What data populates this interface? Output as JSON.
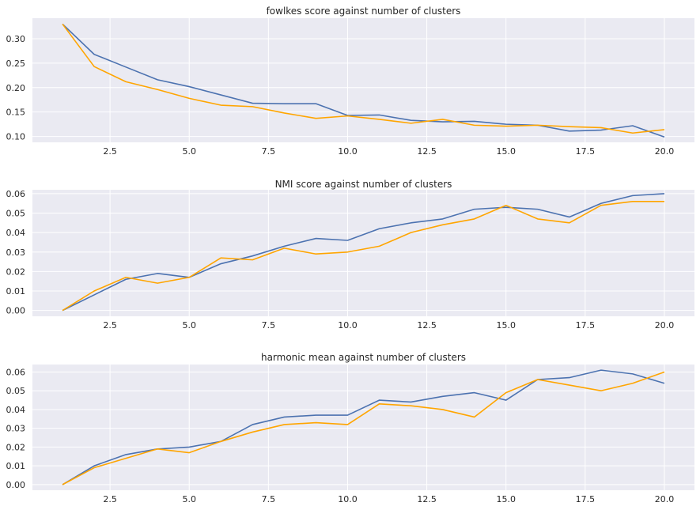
{
  "chart_data": [
    {
      "type": "line",
      "title": "fowlkes score against number of clusters",
      "xlabel": "",
      "ylabel": "",
      "xlim": [
        0.05,
        20.95
      ],
      "ylim": [
        0.088,
        0.342
      ],
      "grid": true,
      "x_ticks": [
        2.5,
        5.0,
        7.5,
        10.0,
        12.5,
        15.0,
        17.5,
        20.0
      ],
      "x_tick_labels": [
        "2.5",
        "5.0",
        "7.5",
        "10.0",
        "12.5",
        "15.0",
        "17.5",
        "20.0"
      ],
      "y_ticks": [
        0.1,
        0.15,
        0.2,
        0.25,
        0.3
      ],
      "y_tick_labels": [
        "0.10",
        "0.15",
        "0.20",
        "0.25",
        "0.30"
      ],
      "x": [
        1,
        2,
        3,
        4,
        5,
        6,
        7,
        8,
        9,
        10,
        11,
        12,
        13,
        14,
        15,
        16,
        17,
        18,
        19,
        20
      ],
      "series": [
        {
          "color": "#4c72b0",
          "values": [
            0.33,
            0.268,
            0.242,
            0.216,
            0.202,
            0.185,
            0.168,
            0.167,
            0.167,
            0.143,
            0.144,
            0.133,
            0.13,
            0.131,
            0.125,
            0.123,
            0.111,
            0.113,
            0.122,
            0.099
          ]
        },
        {
          "color": "#ffa500",
          "values": [
            0.33,
            0.243,
            0.212,
            0.196,
            0.178,
            0.164,
            0.161,
            0.148,
            0.137,
            0.142,
            0.135,
            0.127,
            0.135,
            0.123,
            0.121,
            0.123,
            0.12,
            0.118,
            0.107,
            0.114
          ]
        }
      ]
    },
    {
      "type": "line",
      "title": "NMI score against number of clusters",
      "xlabel": "",
      "ylabel": "",
      "xlim": [
        0.05,
        20.95
      ],
      "ylim": [
        -0.003,
        0.062
      ],
      "grid": true,
      "x_ticks": [
        2.5,
        5.0,
        7.5,
        10.0,
        12.5,
        15.0,
        17.5,
        20.0
      ],
      "x_tick_labels": [
        "2.5",
        "5.0",
        "7.5",
        "10.0",
        "12.5",
        "15.0",
        "17.5",
        "20.0"
      ],
      "y_ticks": [
        0.0,
        0.01,
        0.02,
        0.03,
        0.04,
        0.05,
        0.06
      ],
      "y_tick_labels": [
        "0.00",
        "0.01",
        "0.02",
        "0.03",
        "0.04",
        "0.05",
        "0.06"
      ],
      "x": [
        1,
        2,
        3,
        4,
        5,
        6,
        7,
        8,
        9,
        10,
        11,
        12,
        13,
        14,
        15,
        16,
        17,
        18,
        19,
        20
      ],
      "series": [
        {
          "color": "#4c72b0",
          "values": [
            0.0,
            0.008,
            0.016,
            0.019,
            0.017,
            0.024,
            0.028,
            0.033,
            0.037,
            0.036,
            0.042,
            0.045,
            0.047,
            0.052,
            0.053,
            0.052,
            0.048,
            0.055,
            0.059,
            0.06
          ]
        },
        {
          "color": "#ffa500",
          "values": [
            0.0,
            0.01,
            0.017,
            0.014,
            0.017,
            0.027,
            0.026,
            0.032,
            0.029,
            0.03,
            0.033,
            0.04,
            0.044,
            0.047,
            0.054,
            0.047,
            0.045,
            0.054,
            0.056,
            0.056
          ]
        }
      ]
    },
    {
      "type": "line",
      "title": "harmonic mean against number of clusters",
      "xlabel": "",
      "ylabel": "",
      "xlim": [
        0.05,
        20.95
      ],
      "ylim": [
        -0.003,
        0.064
      ],
      "grid": true,
      "x_ticks": [
        2.5,
        5.0,
        7.5,
        10.0,
        12.5,
        15.0,
        17.5,
        20.0
      ],
      "x_tick_labels": [
        "2.5",
        "5.0",
        "7.5",
        "10.0",
        "12.5",
        "15.0",
        "17.5",
        "20.0"
      ],
      "y_ticks": [
        0.0,
        0.01,
        0.02,
        0.03,
        0.04,
        0.05,
        0.06
      ],
      "y_tick_labels": [
        "0.00",
        "0.01",
        "0.02",
        "0.03",
        "0.04",
        "0.05",
        "0.06"
      ],
      "x": [
        1,
        2,
        3,
        4,
        5,
        6,
        7,
        8,
        9,
        10,
        11,
        12,
        13,
        14,
        15,
        16,
        17,
        18,
        19,
        20
      ],
      "series": [
        {
          "color": "#4c72b0",
          "values": [
            0.0,
            0.01,
            0.016,
            0.019,
            0.02,
            0.023,
            0.032,
            0.036,
            0.037,
            0.037,
            0.045,
            0.044,
            0.047,
            0.049,
            0.045,
            0.056,
            0.057,
            0.061,
            0.059,
            0.054
          ]
        },
        {
          "color": "#ffa500",
          "values": [
            0.0,
            0.009,
            0.014,
            0.019,
            0.017,
            0.023,
            0.028,
            0.032,
            0.033,
            0.032,
            0.043,
            0.042,
            0.04,
            0.036,
            0.049,
            0.056,
            0.053,
            0.05,
            0.054,
            0.06
          ]
        }
      ]
    }
  ]
}
